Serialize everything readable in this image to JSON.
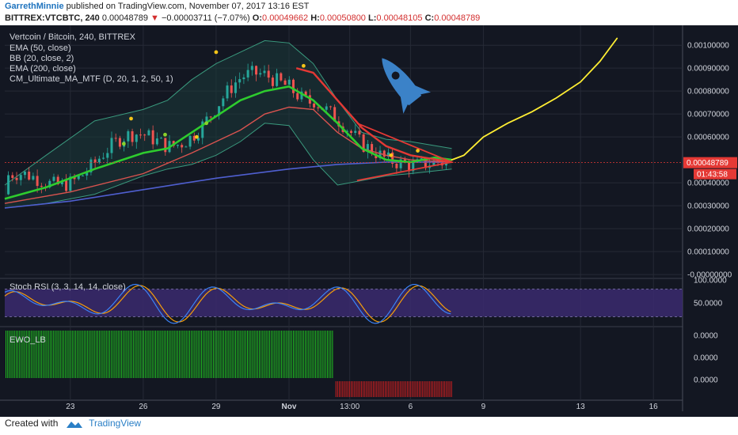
{
  "header": {
    "author": "GarrethMinnie",
    "published_text": "published on TradingView.com, November 07, 2017 13:16 EST",
    "symbol": "BITTREX:VTCBTC, 240",
    "last": "0.00048789",
    "change": "−0.00003711 (−7.07%)",
    "o_label": "O:",
    "o": "0.00049662",
    "h_label": "H:",
    "h": "0.00050800",
    "l_label": "L:",
    "l": "0.00048105",
    "c_label": "C:",
    "c": "0.00048789"
  },
  "legend": {
    "title": "Vertcoin / Bitcoin, 240, BITTREX",
    "items": [
      "EMA (50, close)",
      "BB (20, close, 2)",
      "EMA (200, close)",
      "CM_Ultimate_MA_MTF (D, 20, 1, 2, 50, 1)"
    ]
  },
  "price_label": "0.00048789",
  "countdown": "01:43:58",
  "stoch_label": "Stoch RSI (3, 3, 14, 14, close)",
  "ewo_label": "EWO_LB",
  "footer": {
    "created_with": "Created with",
    "brand": "TradingView"
  },
  "colors": {
    "background": "#131722",
    "grid": "#262a36",
    "ema50": "#2ecc2e",
    "ema200": "#4f5fd0",
    "bb": "#3a9a7e",
    "ma_red": "#e53935",
    "projection": "#ffee33",
    "rocket": "#3b82c8",
    "up": "#26a69a",
    "down": "#ef5350",
    "stoch_k": "#3b82f6",
    "stoch_d": "#f59e0b",
    "stoch_band": "#3b2a6e",
    "ewo_pos": "#1fbf1f",
    "ewo_neg": "#d01f1f",
    "last_price": "#e53935"
  },
  "chart_data": {
    "type": "line",
    "title": "Vertcoin / Bitcoin, 240, BITTREX",
    "x_ticks": [
      "23",
      "26",
      "29",
      "Nov",
      "13:00",
      "6",
      "9",
      "13",
      "16"
    ],
    "x_tick_day": [
      23,
      26,
      29,
      32,
      34.5,
      37,
      40,
      44,
      47
    ],
    "y_ticks": [
      "0.00100000",
      "0.00090000",
      "0.00080000",
      "0.00070000",
      "0.00060000",
      "0.00040000",
      "0.00030000",
      "0.00020000",
      "0.00010000",
      "-0.00000000"
    ],
    "y_tick_values": [
      0.001,
      0.0009,
      0.0008,
      0.0007,
      0.0006,
      0.0004,
      0.0003,
      0.0002,
      0.0001,
      0.0
    ],
    "ylim": [
      -1e-05,
      0.00108
    ],
    "xlim": [
      20.3,
      48.2
    ],
    "last_price": 0.00048789,
    "series": [
      {
        "name": "EMA (50, close)",
        "points": [
          [
            20.3,
            0.00033
          ],
          [
            22,
            0.00038
          ],
          [
            24,
            0.00046
          ],
          [
            26,
            0.00053
          ],
          [
            27,
            0.00055
          ],
          [
            28,
            0.00062
          ],
          [
            29,
            0.00069
          ],
          [
            30,
            0.00076
          ],
          [
            31,
            0.0008
          ],
          [
            32,
            0.00082
          ],
          [
            33,
            0.00076
          ],
          [
            34,
            0.00066
          ],
          [
            35,
            0.00055
          ],
          [
            36,
            0.0005
          ],
          [
            37,
            0.00049
          ],
          [
            38,
            0.00051
          ],
          [
            38.7,
            0.0005
          ]
        ]
      },
      {
        "name": "EMA (200, close)",
        "points": [
          [
            20.3,
            0.00029
          ],
          [
            23,
            0.00032
          ],
          [
            26,
            0.00037
          ],
          [
            29,
            0.00042
          ],
          [
            32,
            0.00046
          ],
          [
            34,
            0.00048
          ],
          [
            36,
            0.00049
          ],
          [
            38.7,
            0.00049
          ]
        ]
      },
      {
        "name": "CM_Ultimate_MA_MTF (D, 20, 1, 2, 50, 1)",
        "points": [
          [
            20.3,
            0.00031
          ],
          [
            23,
            0.00036
          ],
          [
            26,
            0.00044
          ],
          [
            28,
            0.00053
          ],
          [
            30,
            0.00063
          ],
          [
            31,
            0.0007
          ],
          [
            32,
            0.00073
          ],
          [
            33,
            0.00072
          ],
          [
            34,
            0.00062
          ],
          [
            35,
            0.00055
          ],
          [
            36,
            0.00052
          ],
          [
            37,
            0.0005
          ],
          [
            38.7,
            0.00049
          ]
        ]
      },
      {
        "name": "BB upper",
        "points": [
          [
            20.3,
            0.00039
          ],
          [
            22,
            0.00052
          ],
          [
            24,
            0.00067
          ],
          [
            26,
            0.00072
          ],
          [
            27,
            0.00076
          ],
          [
            28,
            0.00085
          ],
          [
            29,
            0.00092
          ],
          [
            30,
            0.00097
          ],
          [
            31,
            0.00102
          ],
          [
            32,
            0.00101
          ],
          [
            33,
            0.00092
          ],
          [
            34,
            0.00076
          ],
          [
            35,
            0.00062
          ],
          [
            36,
            0.00059
          ],
          [
            37,
            0.00058
          ],
          [
            38.7,
            0.00055
          ]
        ]
      },
      {
        "name": "BB lower",
        "points": [
          [
            20.3,
            0.00029
          ],
          [
            22,
            0.00031
          ],
          [
            24,
            0.00035
          ],
          [
            26,
            0.00043
          ],
          [
            27,
            0.00046
          ],
          [
            28,
            0.00048
          ],
          [
            29,
            0.00052
          ],
          [
            30,
            0.00058
          ],
          [
            31,
            0.00066
          ],
          [
            32,
            0.00065
          ],
          [
            33,
            0.0005
          ],
          [
            34,
            0.00039
          ],
          [
            35,
            0.00041
          ],
          [
            36,
            0.00043
          ],
          [
            37,
            0.00044
          ],
          [
            38.7,
            0.00046
          ]
        ]
      },
      {
        "name": "Projection",
        "points": [
          [
            38.7,
            0.0005
          ],
          [
            39.2,
            0.00052
          ],
          [
            40,
            0.0006
          ],
          [
            41,
            0.00066
          ],
          [
            42,
            0.00071
          ],
          [
            43,
            0.00077
          ],
          [
            44,
            0.00084
          ],
          [
            44.8,
            0.00093
          ],
          [
            45.5,
            0.00103
          ]
        ]
      }
    ],
    "triangle": [
      [
        34.8,
        0.00066
      ],
      [
        38.7,
        0.00049
      ],
      [
        34.8,
        0.00041
      ]
    ],
    "stoch_rsi": {
      "ylim": [
        0,
        100
      ],
      "y_ticks": [
        "100.0000",
        "50.0000"
      ],
      "y_tick_values": [
        100,
        50
      ],
      "band": [
        20,
        80
      ]
    },
    "ewo": {
      "y_ticks": [
        "0.0000",
        "0.0000",
        "0.0000"
      ],
      "zero_cross_day": 33.8,
      "end_day": 38.7
    }
  }
}
